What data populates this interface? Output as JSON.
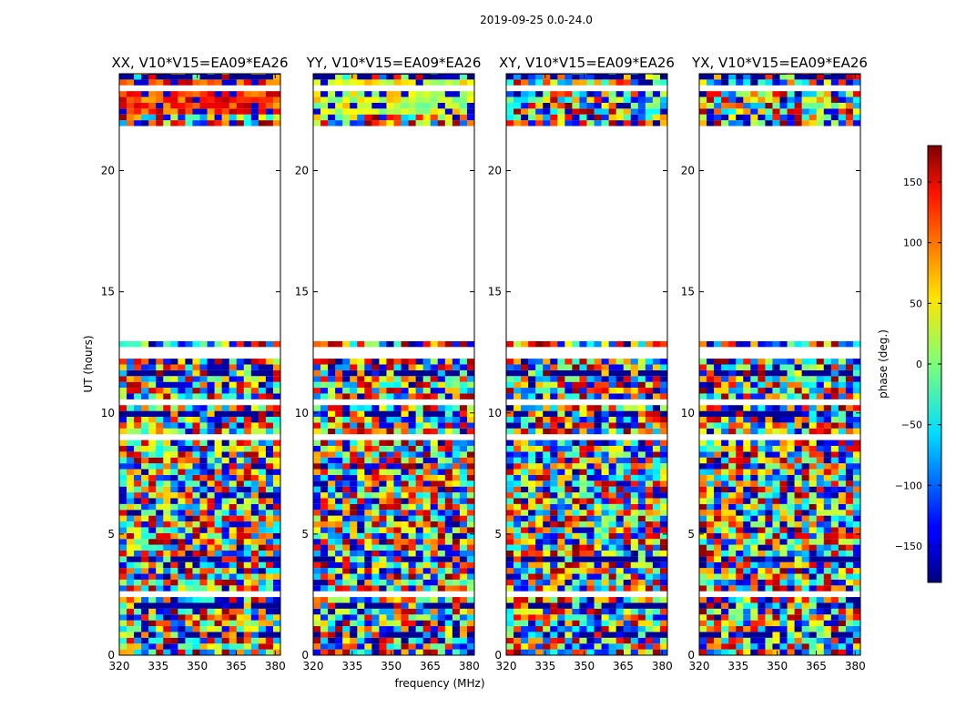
{
  "chart_data": {
    "type": "heatmap",
    "suptitle": "2019-09-25 0.0-24.0",
    "xlabel": "frequency (MHz)",
    "ylabel": "UT (hours)",
    "xlim": [
      320,
      382
    ],
    "ylim": [
      0,
      24
    ],
    "xticks": [
      320,
      335,
      350,
      365,
      380
    ],
    "yticks": [
      0,
      5,
      10,
      15,
      20
    ],
    "panels": [
      {
        "title": "XX, V10*V15=EA09*EA26",
        "pol": "XX"
      },
      {
        "title": "YY, V10*V15=EA09*EA26",
        "pol": "YY"
      },
      {
        "title": "XY, V10*V15=EA09*EA26",
        "pol": "XY"
      },
      {
        "title": "YX, V10*V15=EA09*EA26",
        "pol": "YX"
      }
    ],
    "data_gap_hours": [
      12.8,
      21.6
    ],
    "colorbar": {
      "label": "phase (deg.)",
      "range": [
        -180,
        180
      ],
      "ticks": [
        -150,
        -100,
        -50,
        0,
        50,
        100,
        150
      ],
      "colormap": "jet"
    }
  }
}
